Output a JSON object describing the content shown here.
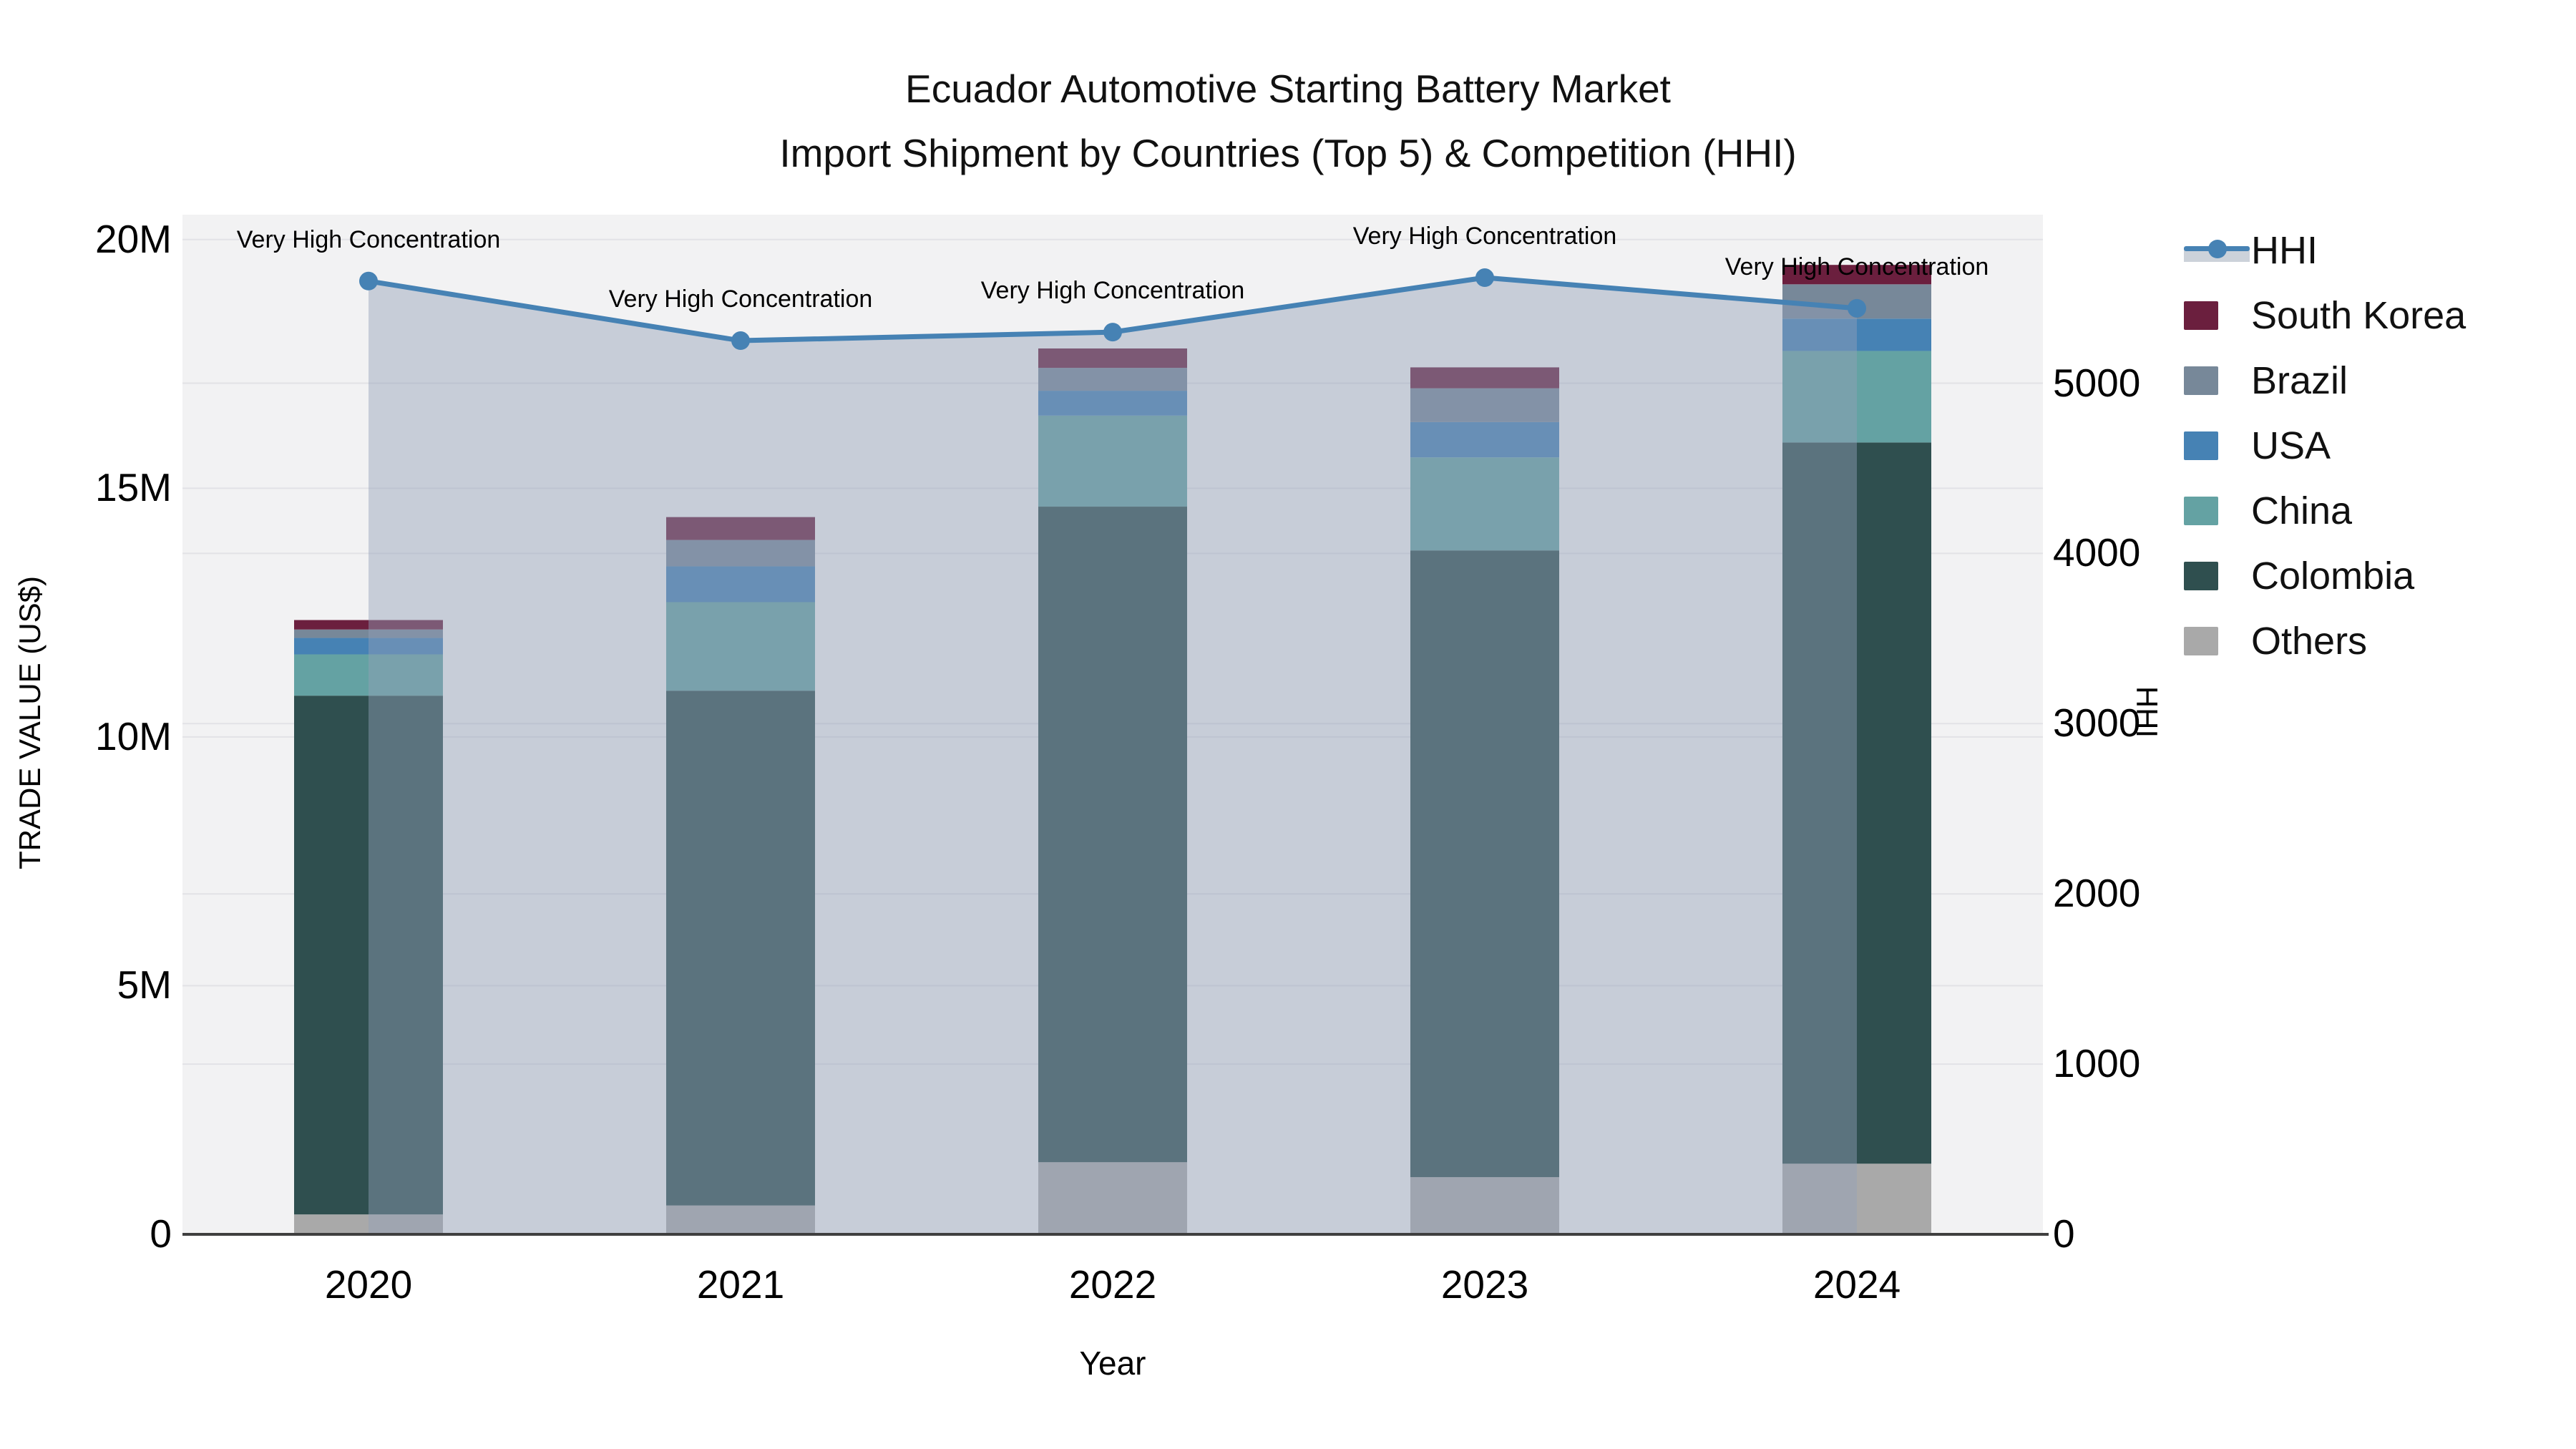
{
  "title": {
    "line1": "Ecuador Automotive Starting Battery Market",
    "line2": "Import Shipment by Countries (Top 5) & Competition (HHI)"
  },
  "legend": {
    "items": [
      {
        "label": "HHI",
        "type": "line",
        "color": "#4682b4"
      },
      {
        "label": "South Korea",
        "type": "box",
        "color": "#6b1f3e"
      },
      {
        "label": "Brazil",
        "type": "box",
        "color": "#778899"
      },
      {
        "label": "USA",
        "type": "box",
        "color": "#4682b4"
      },
      {
        "label": "China",
        "type": "box",
        "color": "#64a2a3"
      },
      {
        "label": "Colombia",
        "type": "box",
        "color": "#2f4f4f"
      },
      {
        "label": "Others",
        "type": "box",
        "color": "#a9a9a9"
      }
    ]
  },
  "chart_data": {
    "type": "combo-stacked-bar-line",
    "categories": [
      "2020",
      "2021",
      "2022",
      "2023",
      "2024"
    ],
    "bar_unit": "USD millions",
    "stack_order_bottom_to_top": [
      "Others",
      "Colombia",
      "China",
      "USA",
      "Brazil",
      "South Korea"
    ],
    "series": [
      {
        "name": "South Korea",
        "color": "#6b1f3e",
        "values": [
          0.19,
          0.46,
          0.39,
          0.42,
          0.39
        ]
      },
      {
        "name": "Brazil",
        "color": "#778899",
        "values": [
          0.17,
          0.53,
          0.46,
          0.68,
          0.69
        ]
      },
      {
        "name": "USA",
        "color": "#4682b4",
        "values": [
          0.33,
          0.72,
          0.5,
          0.71,
          0.65
        ]
      },
      {
        "name": "China",
        "color": "#64a2a3",
        "values": [
          0.83,
          1.78,
          1.83,
          1.87,
          1.84
        ]
      },
      {
        "name": "Colombia",
        "color": "#2f4f4f",
        "values": [
          10.43,
          10.35,
          13.18,
          12.6,
          14.5
        ]
      },
      {
        "name": "Others",
        "color": "#a9a9a9",
        "values": [
          0.4,
          0.58,
          1.45,
          1.15,
          1.42
        ]
      }
    ],
    "bar_totals": [
      12.35,
      14.42,
      17.81,
      17.43,
      19.49
    ],
    "line": {
      "name": "HHI",
      "color": "#4682b4",
      "area_fill": "rgba(147,160,184,0.45)",
      "values": [
        5600,
        5250,
        5300,
        5620,
        5440
      ]
    },
    "annotations": [
      "Very High Concentration",
      "Very High Concentration",
      "Very High Concentration",
      "Very High Concentration",
      "Very High Concentration"
    ],
    "axes": {
      "left": {
        "title": "TRADE VALUE (US$)",
        "ticks": [
          "0",
          "5M",
          "10M",
          "15M",
          "20M"
        ],
        "tick_values": [
          0,
          5,
          10,
          15,
          20
        ],
        "range": [
          0,
          20.5
        ]
      },
      "right": {
        "title": "HHI",
        "ticks": [
          "0",
          "1000",
          "2000",
          "3000",
          "4000",
          "5000"
        ],
        "tick_values": [
          0,
          1000,
          2000,
          3000,
          4000,
          5000
        ],
        "range": [
          0,
          5990
        ]
      },
      "x": {
        "title": "Year",
        "ticks": [
          "2020",
          "2021",
          "2022",
          "2023",
          "2024"
        ]
      }
    },
    "plot_background": "#f2f2f3",
    "gridline_color": "#e2e2e6",
    "axis_line_color": "#3f3f3f",
    "grid": true,
    "legend_position": "right"
  }
}
